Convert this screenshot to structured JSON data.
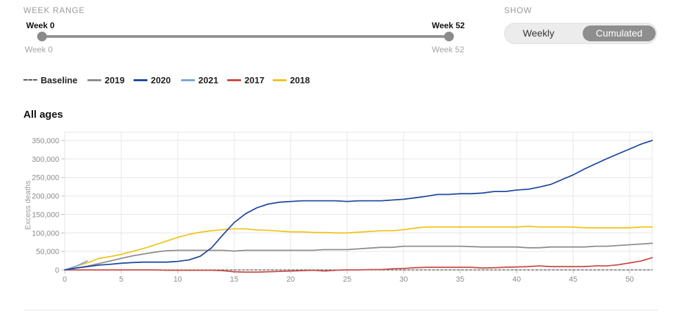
{
  "controls": {
    "week_range_label": "WEEK RANGE",
    "show_label": "SHOW",
    "slider": {
      "start_label": "Week 0",
      "end_label": "Week 52",
      "min_label": "Week 0",
      "max_label": "Week 52",
      "value_start": 0,
      "value_end": 52
    },
    "toggle": {
      "options": [
        "Weekly",
        "Cumulated"
      ],
      "selected": "Cumulated"
    }
  },
  "legend": [
    {
      "label": "Baseline",
      "color": "#555555",
      "style": "dashed"
    },
    {
      "label": "2019",
      "color": "#8c8c8c",
      "style": "solid"
    },
    {
      "label": "2020",
      "color": "#1f48a0",
      "style": "solid"
    },
    {
      "label": "2021",
      "color": "#7ea6d8",
      "style": "solid"
    },
    {
      "label": "2017",
      "color": "#cc4a45",
      "style": "solid"
    },
    {
      "label": "2018",
      "color": "#f0c419",
      "style": "solid"
    }
  ],
  "chart_data": {
    "type": "line",
    "title": "All ages",
    "xlabel": "",
    "ylabel": "Excess deaths",
    "xlim": [
      0,
      52
    ],
    "ylim": [
      0,
      360000
    ],
    "xticks": [
      0,
      5,
      10,
      15,
      20,
      25,
      30,
      35,
      40,
      45,
      50
    ],
    "xtick_labels": [
      "0",
      "5",
      "10",
      "15",
      "20",
      "25",
      "30",
      "35",
      "40",
      "45",
      "50"
    ],
    "yticks": [
      0,
      50000,
      100000,
      150000,
      200000,
      250000,
      300000,
      350000
    ],
    "ytick_labels": [
      "0",
      "50,000",
      "100,000",
      "150,000",
      "200,000",
      "250,000",
      "300,000",
      "350,000"
    ],
    "grid": true,
    "series": [
      {
        "name": "Baseline",
        "color": "#555555",
        "dashed": true,
        "x": [
          0,
          52
        ],
        "values": [
          0,
          0
        ]
      },
      {
        "name": "2019",
        "color": "#8c8c8c",
        "x": [
          0,
          1,
          2,
          3,
          4,
          5,
          6,
          7,
          8,
          9,
          10,
          11,
          12,
          13,
          14,
          15,
          16,
          17,
          18,
          19,
          20,
          21,
          22,
          23,
          24,
          25,
          26,
          27,
          28,
          29,
          30,
          31,
          32,
          33,
          34,
          35,
          36,
          37,
          38,
          39,
          40,
          41,
          42,
          43,
          44,
          45,
          46,
          47,
          48,
          49,
          50,
          51,
          52
        ],
        "values": [
          0,
          5000,
          10000,
          17000,
          24000,
          31000,
          38000,
          43000,
          48000,
          52000,
          53000,
          53000,
          53000,
          53000,
          53000,
          51000,
          53000,
          53000,
          53000,
          53000,
          53000,
          53000,
          53000,
          55000,
          55000,
          55000,
          57000,
          59000,
          61000,
          61000,
          64000,
          64000,
          64000,
          64000,
          64000,
          64000,
          63000,
          62000,
          62000,
          62000,
          62000,
          60000,
          60000,
          62000,
          62000,
          62000,
          62000,
          64000,
          64000,
          66000,
          68000,
          70000,
          72000
        ]
      },
      {
        "name": "2020",
        "color": "#1f48a0",
        "x": [
          0,
          1,
          2,
          3,
          4,
          5,
          6,
          7,
          8,
          9,
          10,
          11,
          12,
          13,
          14,
          15,
          16,
          17,
          18,
          19,
          20,
          21,
          22,
          23,
          24,
          25,
          26,
          27,
          28,
          29,
          30,
          31,
          32,
          33,
          34,
          35,
          36,
          37,
          38,
          39,
          40,
          41,
          42,
          43,
          44,
          45,
          46,
          47,
          48,
          49,
          50,
          51,
          52
        ],
        "values": [
          0,
          5000,
          9000,
          13000,
          15000,
          18000,
          20000,
          21000,
          21000,
          21000,
          23000,
          27000,
          37000,
          60000,
          95000,
          128000,
          152000,
          168000,
          178000,
          183000,
          185000,
          187000,
          187000,
          187000,
          187000,
          185000,
          187000,
          187000,
          187000,
          189000,
          191000,
          195000,
          199000,
          204000,
          204000,
          206000,
          206000,
          208000,
          212000,
          212000,
          216000,
          218000,
          224000,
          231000,
          244000,
          257000,
          273000,
          287000,
          301000,
          314000,
          327000,
          340000,
          350000
        ]
      },
      {
        "name": "2021",
        "color": "#7ea6d8",
        "x": [
          0,
          1,
          2
        ],
        "values": [
          0,
          10000,
          24000
        ]
      },
      {
        "name": "2017",
        "color": "#cc4a45",
        "x": [
          0,
          1,
          2,
          3,
          4,
          5,
          6,
          7,
          8,
          9,
          10,
          11,
          12,
          13,
          14,
          15,
          16,
          17,
          18,
          19,
          20,
          21,
          22,
          23,
          24,
          25,
          26,
          27,
          28,
          29,
          30,
          31,
          32,
          33,
          34,
          35,
          36,
          37,
          38,
          39,
          40,
          41,
          42,
          43,
          44,
          45,
          46,
          47,
          48,
          49,
          50,
          51,
          52
        ],
        "values": [
          0,
          0,
          0,
          0,
          0,
          0,
          0,
          0,
          0,
          -1000,
          -1000,
          -1000,
          -1000,
          -1000,
          -2000,
          -5000,
          -6000,
          -6000,
          -5000,
          -4000,
          -3000,
          -2000,
          -1000,
          -3000,
          -1000,
          0,
          0,
          1000,
          1000,
          3000,
          4000,
          6000,
          7000,
          7000,
          7000,
          7000,
          7000,
          5000,
          6000,
          7000,
          8000,
          9000,
          11000,
          9000,
          9000,
          9000,
          9000,
          11000,
          11000,
          14000,
          19000,
          24000,
          33000
        ]
      },
      {
        "name": "2018",
        "color": "#f0c419",
        "x": [
          0,
          1,
          2,
          3,
          4,
          5,
          6,
          7,
          8,
          9,
          10,
          11,
          12,
          13,
          14,
          15,
          16,
          17,
          18,
          19,
          20,
          21,
          22,
          23,
          24,
          25,
          26,
          27,
          28,
          29,
          30,
          31,
          32,
          33,
          34,
          35,
          36,
          37,
          38,
          39,
          40,
          41,
          42,
          43,
          44,
          45,
          46,
          47,
          48,
          49,
          50,
          51,
          52
        ],
        "values": [
          0,
          10000,
          19000,
          31000,
          36000,
          42000,
          50000,
          58000,
          68000,
          78000,
          88000,
          96000,
          102000,
          106000,
          109000,
          111000,
          111000,
          108000,
          107000,
          105000,
          103000,
          103000,
          101000,
          101000,
          100000,
          100000,
          102000,
          104000,
          106000,
          106000,
          109000,
          113000,
          116000,
          116000,
          116000,
          116000,
          116000,
          116000,
          116000,
          116000,
          116000,
          118000,
          116000,
          116000,
          116000,
          116000,
          114000,
          114000,
          114000,
          114000,
          114000,
          116000,
          116000
        ]
      }
    ]
  }
}
